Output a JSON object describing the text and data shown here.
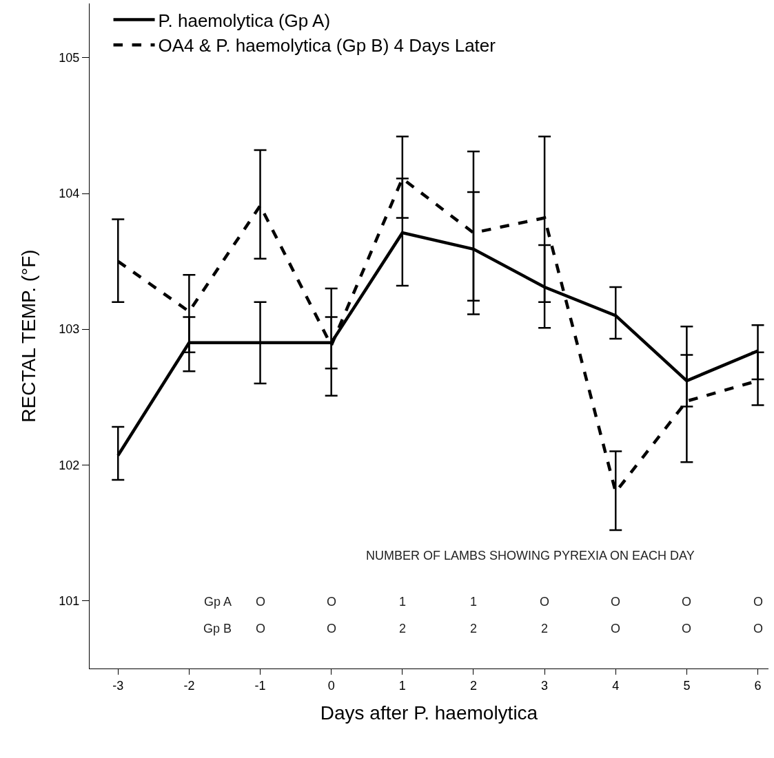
{
  "chart_data": {
    "type": "line",
    "xlabel": "Days after P. haemolytica",
    "ylabel": "RECTAL TEMP. (°F)",
    "x": [
      -3,
      -2,
      -1,
      0,
      1,
      2,
      3,
      4,
      5,
      6
    ],
    "series": [
      {
        "name": "P. haemolytica (Gp A)",
        "color": "#000000",
        "line_style": "solid",
        "values": [
          102.07,
          102.9,
          102.9,
          102.9,
          103.71,
          103.59,
          103.31,
          103.1,
          102.62,
          102.84
        ],
        "errors": [
          [
            101.89,
            102.28
          ],
          [
            102.69,
            103.09
          ],
          [
            102.6,
            103.2
          ],
          [
            102.71,
            103.09
          ],
          [
            103.32,
            104.11
          ],
          [
            103.21,
            104.01
          ],
          [
            103.01,
            103.62
          ],
          [
            102.93,
            103.31
          ],
          [
            102.43,
            102.81
          ],
          [
            102.63,
            103.03
          ]
        ]
      },
      {
        "name": "OA4 & P. haemolytica (Gp B) 4 Days Later",
        "color": "#000000",
        "line_style": "dashed",
        "values": [
          103.5,
          103.13,
          103.91,
          102.88,
          104.11,
          103.71,
          103.82,
          101.8,
          102.47,
          102.62
        ],
        "errors": [
          [
            103.2,
            103.81
          ],
          [
            102.83,
            103.4
          ],
          [
            103.52,
            104.32
          ],
          [
            102.51,
            103.3
          ],
          [
            103.82,
            104.42
          ],
          [
            103.11,
            104.31
          ],
          [
            103.2,
            104.42
          ],
          [
            101.52,
            102.1
          ],
          [
            102.02,
            103.02
          ],
          [
            102.44,
            102.83
          ]
        ]
      }
    ],
    "xlim": [
      -3.4,
      6.15
    ],
    "xticks": [
      -3,
      -2,
      -1,
      0,
      1,
      2,
      3,
      4,
      5,
      6
    ],
    "ylim": [
      100.5,
      105.4
    ],
    "yticks": [
      101,
      102,
      103,
      104,
      105
    ],
    "grid": false,
    "legend": "top left",
    "marker": "none",
    "annotations": [
      "NUMBER OF LAMBS SHOWING PYREXIA ON EACH DAY",
      "Gp A",
      "O",
      "O",
      "1",
      "1",
      "O",
      "O",
      "O",
      "O",
      "Gp B",
      "O",
      "O",
      "2",
      "2",
      "2",
      "O",
      "O",
      "O"
    ]
  }
}
